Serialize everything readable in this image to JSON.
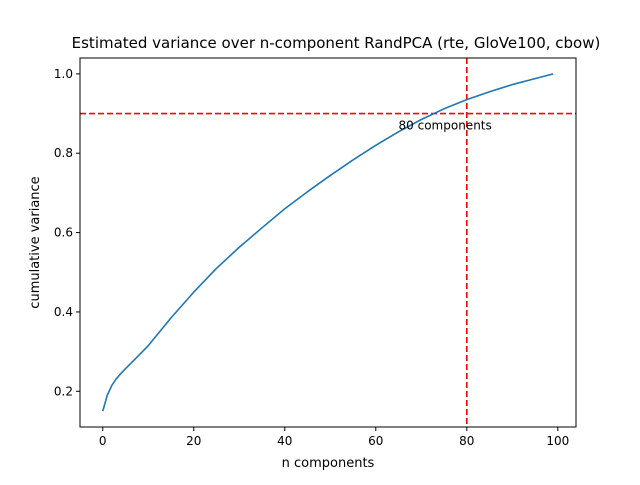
{
  "chart_data": {
    "type": "line",
    "title": "Estimated variance over n-component RandPCA (rte, GloVe100, cbow)",
    "xlabel": "n components",
    "ylabel": "cumulative variance",
    "xlim": [
      -5,
      104
    ],
    "ylim": [
      0.11,
      1.04
    ],
    "xticks": [
      0,
      20,
      40,
      60,
      80,
      100
    ],
    "xtick_labels": [
      "0",
      "20",
      "40",
      "60",
      "80",
      "100"
    ],
    "yticks": [
      0.2,
      0.4,
      0.6,
      0.8,
      1.0
    ],
    "ytick_labels": [
      "0.2",
      "0.4",
      "0.6",
      "0.8",
      "1.0"
    ],
    "grid": false,
    "series": [
      {
        "color": "#1f77b4",
        "x": [
          0,
          1,
          2,
          3,
          4,
          5,
          7,
          10,
          15,
          20,
          25,
          30,
          35,
          40,
          45,
          50,
          55,
          60,
          65,
          70,
          75,
          80,
          85,
          90,
          95,
          99
        ],
        "y": [
          0.15,
          0.19,
          0.215,
          0.232,
          0.245,
          0.257,
          0.28,
          0.315,
          0.385,
          0.45,
          0.51,
          0.563,
          0.612,
          0.66,
          0.703,
          0.744,
          0.783,
          0.82,
          0.854,
          0.885,
          0.912,
          0.935,
          0.955,
          0.973,
          0.988,
          1.0
        ]
      }
    ],
    "reference_lines": [
      {
        "orientation": "horizontal",
        "value": 0.9,
        "color": "#ff0000",
        "style": "dashed"
      },
      {
        "orientation": "vertical",
        "value": 80,
        "color": "#ff0000",
        "style": "dashed"
      }
    ],
    "annotations": [
      {
        "text": "80 components",
        "x": 65,
        "y": 0.87
      }
    ]
  }
}
